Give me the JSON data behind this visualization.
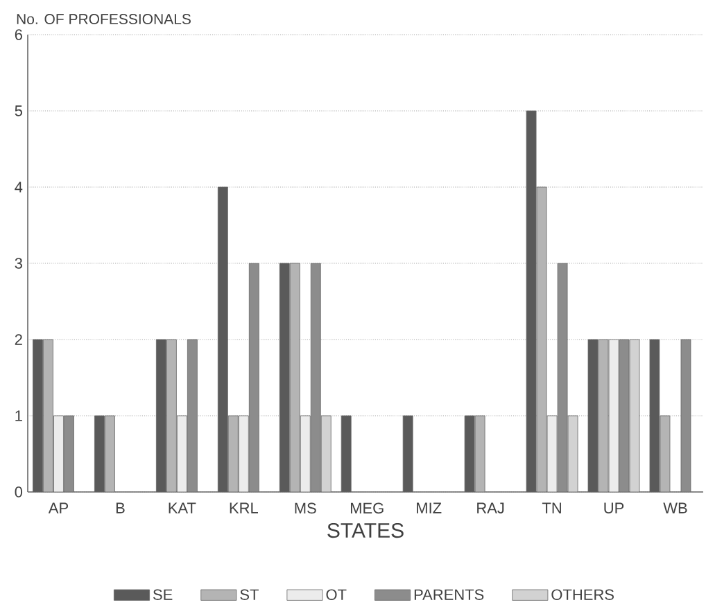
{
  "chart_data": {
    "type": "bar",
    "xlabel": "STATES",
    "ylabel": "No. OF PROFESSIONALS",
    "categories": [
      "AP",
      "B",
      "KAT",
      "KRL",
      "MS",
      "MEG",
      "MIZ",
      "RAJ",
      "TN",
      "UP",
      "WB"
    ],
    "series": [
      {
        "name": "SE",
        "color": "#5a5a5a",
        "values": [
          2,
          1,
          2,
          4,
          3,
          1,
          1,
          1,
          5,
          2,
          2
        ]
      },
      {
        "name": "ST",
        "color": "#b4b4b4",
        "values": [
          2,
          1,
          2,
          1,
          3,
          0,
          0,
          1,
          4,
          2,
          1
        ]
      },
      {
        "name": "OT",
        "color": "#ececec",
        "values": [
          1,
          0,
          1,
          1,
          1,
          0,
          0,
          0,
          1,
          2,
          0
        ]
      },
      {
        "name": "PARENTS",
        "color": "#8c8c8c",
        "values": [
          1,
          0,
          2,
          3,
          3,
          0,
          0,
          0,
          3,
          2,
          2
        ]
      },
      {
        "name": "OTHERS",
        "color": "#d2d2d2",
        "values": [
          0,
          0,
          0,
          0,
          1,
          0,
          0,
          0,
          1,
          2,
          0
        ]
      }
    ],
    "ylim": [
      0,
      6
    ],
    "yticks": [
      0,
      1,
      2,
      3,
      4,
      5,
      6
    ],
    "grid": "y",
    "legend": "bottom"
  }
}
